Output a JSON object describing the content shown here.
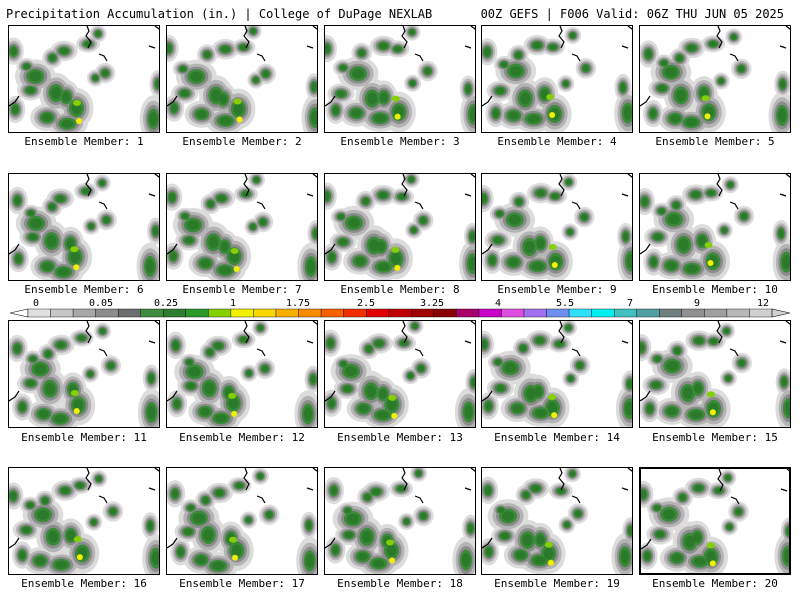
{
  "header": {
    "title_left": "Precipitation Accumulation (in.) | College of DuPage NEXLAB",
    "title_right": "00Z GEFS | F006 Valid: 06Z THU JUN 05 2025"
  },
  "colorbar": {
    "labels": [
      "0",
      "0.05",
      "0.25",
      "1",
      "1.75",
      "2.5",
      "3.25",
      "4",
      "5.5",
      "7",
      "9",
      "12"
    ],
    "colors": [
      "#e0e0e0",
      "#c6c6c6",
      "#a8a8a8",
      "#8c8c8c",
      "#6e6e6e",
      "#3e8c3e",
      "#2e7e2e",
      "#2a9a2a",
      "#84d000",
      "#f0f000",
      "#f8d800",
      "#f8b000",
      "#f88c00",
      "#f86000",
      "#f03000",
      "#e00000",
      "#c00000",
      "#a00000",
      "#880000",
      "#a8006a",
      "#c800c8",
      "#e050e0",
      "#a070f0",
      "#7090f0",
      "#30e0ff",
      "#00f0f0",
      "#40c0c0",
      "#50a0a0",
      "#708080",
      "#909090",
      "#a0a0a0",
      "#b8b8b8",
      "#d0d0d0"
    ]
  },
  "panels": [
    {
      "caption": "Ensemble Member: 1"
    },
    {
      "caption": "Ensemble Member: 2"
    },
    {
      "caption": "Ensemble Member: 3"
    },
    {
      "caption": "Ensemble Member: 4"
    },
    {
      "caption": "Ensemble Member: 5"
    },
    {
      "caption": "Ensemble Member: 6"
    },
    {
      "caption": "Ensemble Member: 7"
    },
    {
      "caption": "Ensemble Member: 8"
    },
    {
      "caption": "Ensemble Member: 9"
    },
    {
      "caption": "Ensemble Member: 10"
    },
    {
      "caption": "Ensemble Member: 11"
    },
    {
      "caption": "Ensemble Member: 12"
    },
    {
      "caption": "Ensemble Member: 13"
    },
    {
      "caption": "Ensemble Member: 14"
    },
    {
      "caption": "Ensemble Member: 15"
    },
    {
      "caption": "Ensemble Member: 16"
    },
    {
      "caption": "Ensemble Member: 17"
    },
    {
      "caption": "Ensemble Member: 18"
    },
    {
      "caption": "Ensemble Member: 19"
    },
    {
      "caption": "Ensemble Member: 20",
      "selected": true
    }
  ]
}
